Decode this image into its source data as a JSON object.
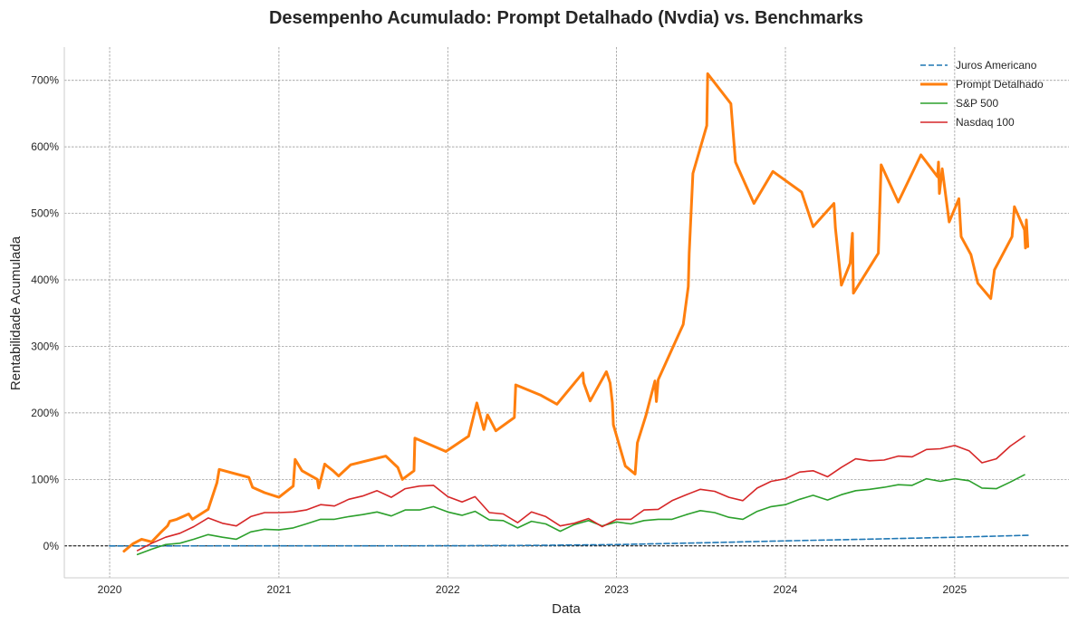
{
  "chart_data": {
    "type": "line",
    "title": "Desempenho Acumulado: Prompt Detalhado (Nvdia) vs. Benchmarks",
    "xlabel": "Data",
    "ylabel": "Rentabilidade Acumulada",
    "xlim": [
      "2019-09-25",
      "2025-09-05"
    ],
    "ylim": [
      -48,
      750
    ],
    "x_ticks": [
      "2020-01-01",
      "2021-01-01",
      "2022-01-01",
      "2023-01-01",
      "2024-01-01",
      "2025-01-01"
    ],
    "x_tick_labels": [
      "2020",
      "2021",
      "2022",
      "2023",
      "2024",
      "2025"
    ],
    "y_ticks": [
      0,
      100,
      200,
      300,
      400,
      500,
      600,
      700
    ],
    "y_tick_labels": [
      "0%",
      "100%",
      "200%",
      "300%",
      "400%",
      "500%",
      "600%",
      "700%"
    ],
    "grid": true,
    "zero_line": true,
    "legend_position": "top-right",
    "series": [
      {
        "name": "Juros Americano",
        "color": "#1f77b4",
        "style": "dashed",
        "x": [
          "2020-01-01",
          "2021-01-01",
          "2022-01-01",
          "2022-07-01",
          "2023-01-01",
          "2023-07-01",
          "2024-01-01",
          "2024-07-01",
          "2025-01-01",
          "2025-06-10"
        ],
        "y": [
          0,
          0.1,
          0.2,
          0.8,
          2,
          4.5,
          7.5,
          10.2,
          13,
          16
        ]
      },
      {
        "name": "Prompt Detalhado",
        "color": "#ff7f0e",
        "style": "solid",
        "x": [
          "2020-02-01",
          "2020-02-20",
          "2020-03-10",
          "2020-04-01",
          "2020-04-20",
          "2020-05-05",
          "2020-05-10",
          "2020-05-25",
          "2020-06-20",
          "2020-06-28",
          "2020-08-01",
          "2020-08-20",
          "2020-08-25",
          "2020-10-28",
          "2020-11-05",
          "2020-12-01",
          "2021-01-01",
          "2021-02-01",
          "2021-02-05",
          "2021-02-20",
          "2021-03-25",
          "2021-03-28",
          "2021-04-10",
          "2021-04-15",
          "2021-04-28",
          "2021-05-10",
          "2021-06-05",
          "2021-08-20",
          "2021-09-15",
          "2021-09-25",
          "2021-10-20",
          "2021-10-22",
          "2021-12-28",
          "2022-02-15",
          "2022-03-05",
          "2022-03-20",
          "2022-03-28",
          "2022-04-15",
          "2022-05-25",
          "2022-05-28",
          "2022-07-20",
          "2022-08-25",
          "2022-10-20",
          "2022-10-22",
          "2022-11-05",
          "2022-12-10",
          "2022-12-18",
          "2022-12-23",
          "2022-12-25",
          "2023-01-20",
          "2023-02-10",
          "2023-02-15",
          "2023-03-05",
          "2023-03-25",
          "2023-03-28",
          "2023-04-01",
          "2023-05-25",
          "2023-06-05",
          "2023-06-07",
          "2023-06-15",
          "2023-07-15",
          "2023-07-17",
          "2023-09-05",
          "2023-09-15",
          "2023-10-25",
          "2023-12-05",
          "2024-02-05",
          "2024-03-01",
          "2024-04-15",
          "2024-04-18",
          "2024-05-01",
          "2024-05-20",
          "2024-05-25",
          "2024-05-27",
          "2024-07-20",
          "2024-07-26",
          "2024-09-01",
          "2024-10-20",
          "2024-11-25",
          "2024-11-27",
          "2024-11-29",
          "2024-12-05",
          "2024-12-20",
          "2025-01-10",
          "2025-01-15",
          "2025-02-05",
          "2025-02-20",
          "2025-03-20",
          "2025-03-28",
          "2025-05-05",
          "2025-05-10",
          "2025-06-01",
          "2025-06-03",
          "2025-06-05",
          "2025-06-08"
        ],
        "y": [
          -8,
          3,
          10,
          6,
          20,
          30,
          37,
          40,
          48,
          40,
          55,
          95,
          115,
          103,
          88,
          80,
          73,
          90,
          130,
          113,
          100,
          87,
          123,
          120,
          113,
          105,
          122,
          135,
          118,
          100,
          113,
          162,
          142,
          165,
          215,
          175,
          197,
          173,
          193,
          242,
          227,
          213,
          260,
          245,
          218,
          262,
          245,
          215,
          182,
          120,
          108,
          155,
          195,
          248,
          217,
          250,
          333,
          390,
          440,
          560,
          632,
          710,
          665,
          577,
          515,
          563,
          532,
          480,
          515,
          478,
          392,
          425,
          470,
          380,
          440,
          573,
          517,
          588,
          555,
          577,
          530,
          567,
          487,
          522,
          465,
          438,
          395,
          372,
          415,
          465,
          510,
          475,
          448,
          490,
          450
        ]
      },
      {
        "name": "S&P 500",
        "color": "#2ca02c",
        "style": "solid",
        "x": [
          "2020-03-01",
          "2020-04-01",
          "2020-05-01",
          "2020-06-01",
          "2020-07-01",
          "2020-08-01",
          "2020-09-01",
          "2020-10-01",
          "2020-11-01",
          "2020-12-01",
          "2021-01-01",
          "2021-02-01",
          "2021-03-01",
          "2021-04-01",
          "2021-05-01",
          "2021-06-01",
          "2021-07-01",
          "2021-08-01",
          "2021-09-01",
          "2021-10-01",
          "2021-11-01",
          "2021-12-01",
          "2022-01-01",
          "2022-02-01",
          "2022-03-01",
          "2022-04-01",
          "2022-05-01",
          "2022-06-01",
          "2022-07-01",
          "2022-08-01",
          "2022-09-01",
          "2022-10-01",
          "2022-11-01",
          "2022-12-01",
          "2023-01-01",
          "2023-02-01",
          "2023-03-01",
          "2023-04-01",
          "2023-05-01",
          "2023-06-01",
          "2023-07-01",
          "2023-08-01",
          "2023-09-01",
          "2023-10-01",
          "2023-11-01",
          "2023-12-01",
          "2024-01-01",
          "2024-02-01",
          "2024-03-01",
          "2024-04-01",
          "2024-05-01",
          "2024-06-01",
          "2024-07-01",
          "2024-08-01",
          "2024-09-01",
          "2024-10-01",
          "2024-11-01",
          "2024-12-01",
          "2025-01-01",
          "2025-02-01",
          "2025-03-01",
          "2025-04-01",
          "2025-05-01",
          "2025-06-01"
        ],
        "y": [
          -13,
          -5,
          2,
          4,
          10,
          17,
          13,
          10,
          21,
          25,
          24,
          27,
          33,
          40,
          40,
          44,
          47,
          51,
          45,
          54,
          54,
          59,
          51,
          46,
          52,
          39,
          38,
          27,
          37,
          33,
          22,
          32,
          38,
          30,
          36,
          33,
          38,
          40,
          40,
          47,
          53,
          50,
          43,
          40,
          52,
          59,
          62,
          70,
          76,
          69,
          77,
          83,
          85,
          88,
          92,
          91,
          101,
          97,
          101,
          98,
          87,
          86,
          96,
          107
        ]
      },
      {
        "name": "Nasdaq 100",
        "color": "#d62728",
        "style": "solid",
        "x": [
          "2020-03-01",
          "2020-04-01",
          "2020-05-01",
          "2020-06-01",
          "2020-07-01",
          "2020-08-01",
          "2020-09-01",
          "2020-10-01",
          "2020-11-01",
          "2020-12-01",
          "2021-01-01",
          "2021-02-01",
          "2021-03-01",
          "2021-04-01",
          "2021-05-01",
          "2021-06-01",
          "2021-07-01",
          "2021-08-01",
          "2021-09-01",
          "2021-10-01",
          "2021-11-01",
          "2021-12-01",
          "2022-01-01",
          "2022-02-01",
          "2022-03-01",
          "2022-04-01",
          "2022-05-01",
          "2022-06-01",
          "2022-07-01",
          "2022-08-01",
          "2022-09-01",
          "2022-10-01",
          "2022-11-01",
          "2022-12-01",
          "2023-01-01",
          "2023-02-01",
          "2023-03-01",
          "2023-04-01",
          "2023-05-01",
          "2023-06-01",
          "2023-07-01",
          "2023-08-01",
          "2023-09-01",
          "2023-10-01",
          "2023-11-01",
          "2023-12-01",
          "2024-01-01",
          "2024-02-01",
          "2024-03-01",
          "2024-04-01",
          "2024-05-01",
          "2024-06-01",
          "2024-07-01",
          "2024-08-01",
          "2024-09-01",
          "2024-10-01",
          "2024-11-01",
          "2024-12-01",
          "2025-01-01",
          "2025-02-01",
          "2025-03-01",
          "2025-04-01",
          "2025-05-01",
          "2025-06-01"
        ],
        "y": [
          -7,
          4,
          13,
          19,
          29,
          42,
          34,
          30,
          44,
          50,
          50,
          51,
          54,
          62,
          60,
          70,
          75,
          83,
          73,
          86,
          90,
          91,
          74,
          66,
          74,
          50,
          48,
          35,
          51,
          44,
          30,
          34,
          41,
          29,
          40,
          40,
          54,
          55,
          68,
          77,
          85,
          82,
          73,
          68,
          87,
          97,
          101,
          111,
          113,
          104,
          118,
          131,
          128,
          129,
          135,
          134,
          145,
          146,
          151,
          143,
          125,
          131,
          150,
          165
        ]
      }
    ]
  }
}
